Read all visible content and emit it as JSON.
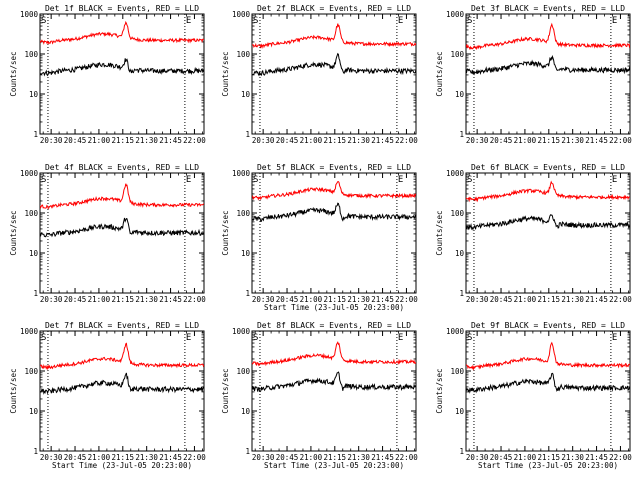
{
  "figure": {
    "panels": [
      {
        "title": "Det 1f BLACK = Events, RED = LLD",
        "show_xlabel": false
      },
      {
        "title": "Det 2f BLACK = Events, RED = LLD",
        "show_xlabel": false
      },
      {
        "title": "Det 3f BLACK = Events, RED = LLD",
        "show_xlabel": false
      },
      {
        "title": "Det 4f BLACK = Events, RED = LLD",
        "show_xlabel": false
      },
      {
        "title": "Det 5f BLACK = Events, RED = LLD",
        "show_xlabel": true
      },
      {
        "title": "Det 6f BLACK = Events, RED = LLD",
        "show_xlabel": false
      },
      {
        "title": "Det 7f BLACK = Events, RED = LLD",
        "show_xlabel": true
      },
      {
        "title": "Det 8f BLACK = Events, RED = LLD",
        "show_xlabel": true
      },
      {
        "title": "Det 9f BLACK = Events, RED = LLD",
        "show_xlabel": true
      }
    ]
  },
  "chart_data": {
    "type": "line",
    "ylabel": "Counts/sec",
    "xlabel": "Start Time (23-Jul-05 20:23:00)",
    "yscale": "log",
    "ylim": [
      1,
      1000
    ],
    "yticks": [
      1,
      10,
      100,
      1000
    ],
    "ytick_labels": [
      "1",
      "10",
      "100",
      "1000"
    ],
    "xlim_minutes": [
      0,
      103
    ],
    "xticks_minutes": [
      7,
      22,
      37,
      52,
      67,
      82,
      97
    ],
    "xtick_labels": [
      "20:30",
      "20:45",
      "21:00",
      "21:15",
      "21:30",
      "21:45",
      "22:00"
    ],
    "markers": [
      {
        "label": "S",
        "x_minutes": 0
      },
      {
        "label": "E",
        "x_minutes": 91
      }
    ],
    "vlines_minutes": [
      5,
      91
    ],
    "series_colors": {
      "events": "#000000",
      "lld": "#ff0000"
    },
    "peak_minutes": 54,
    "panels": [
      {
        "events_base": 38,
        "lld_base": 220,
        "events_peak": 62,
        "lld_peak": 520
      },
      {
        "events_base": 38,
        "lld_base": 180,
        "events_peak": 78,
        "lld_peak": 460
      },
      {
        "events_base": 40,
        "lld_base": 165,
        "events_peak": 72,
        "lld_peak": 460
      },
      {
        "events_base": 32,
        "lld_base": 160,
        "events_peak": 65,
        "lld_peak": 440
      },
      {
        "events_base": 80,
        "lld_base": 270,
        "events_peak": 140,
        "lld_peak": 520
      },
      {
        "events_base": 50,
        "lld_base": 250,
        "events_peak": 75,
        "lld_peak": 500
      },
      {
        "events_base": 35,
        "lld_base": 140,
        "events_peak": 70,
        "lld_peak": 400
      },
      {
        "events_base": 40,
        "lld_base": 170,
        "events_peak": 75,
        "lld_peak": 440
      },
      {
        "events_base": 38,
        "lld_base": 140,
        "events_peak": 70,
        "lld_peak": 410
      }
    ]
  }
}
